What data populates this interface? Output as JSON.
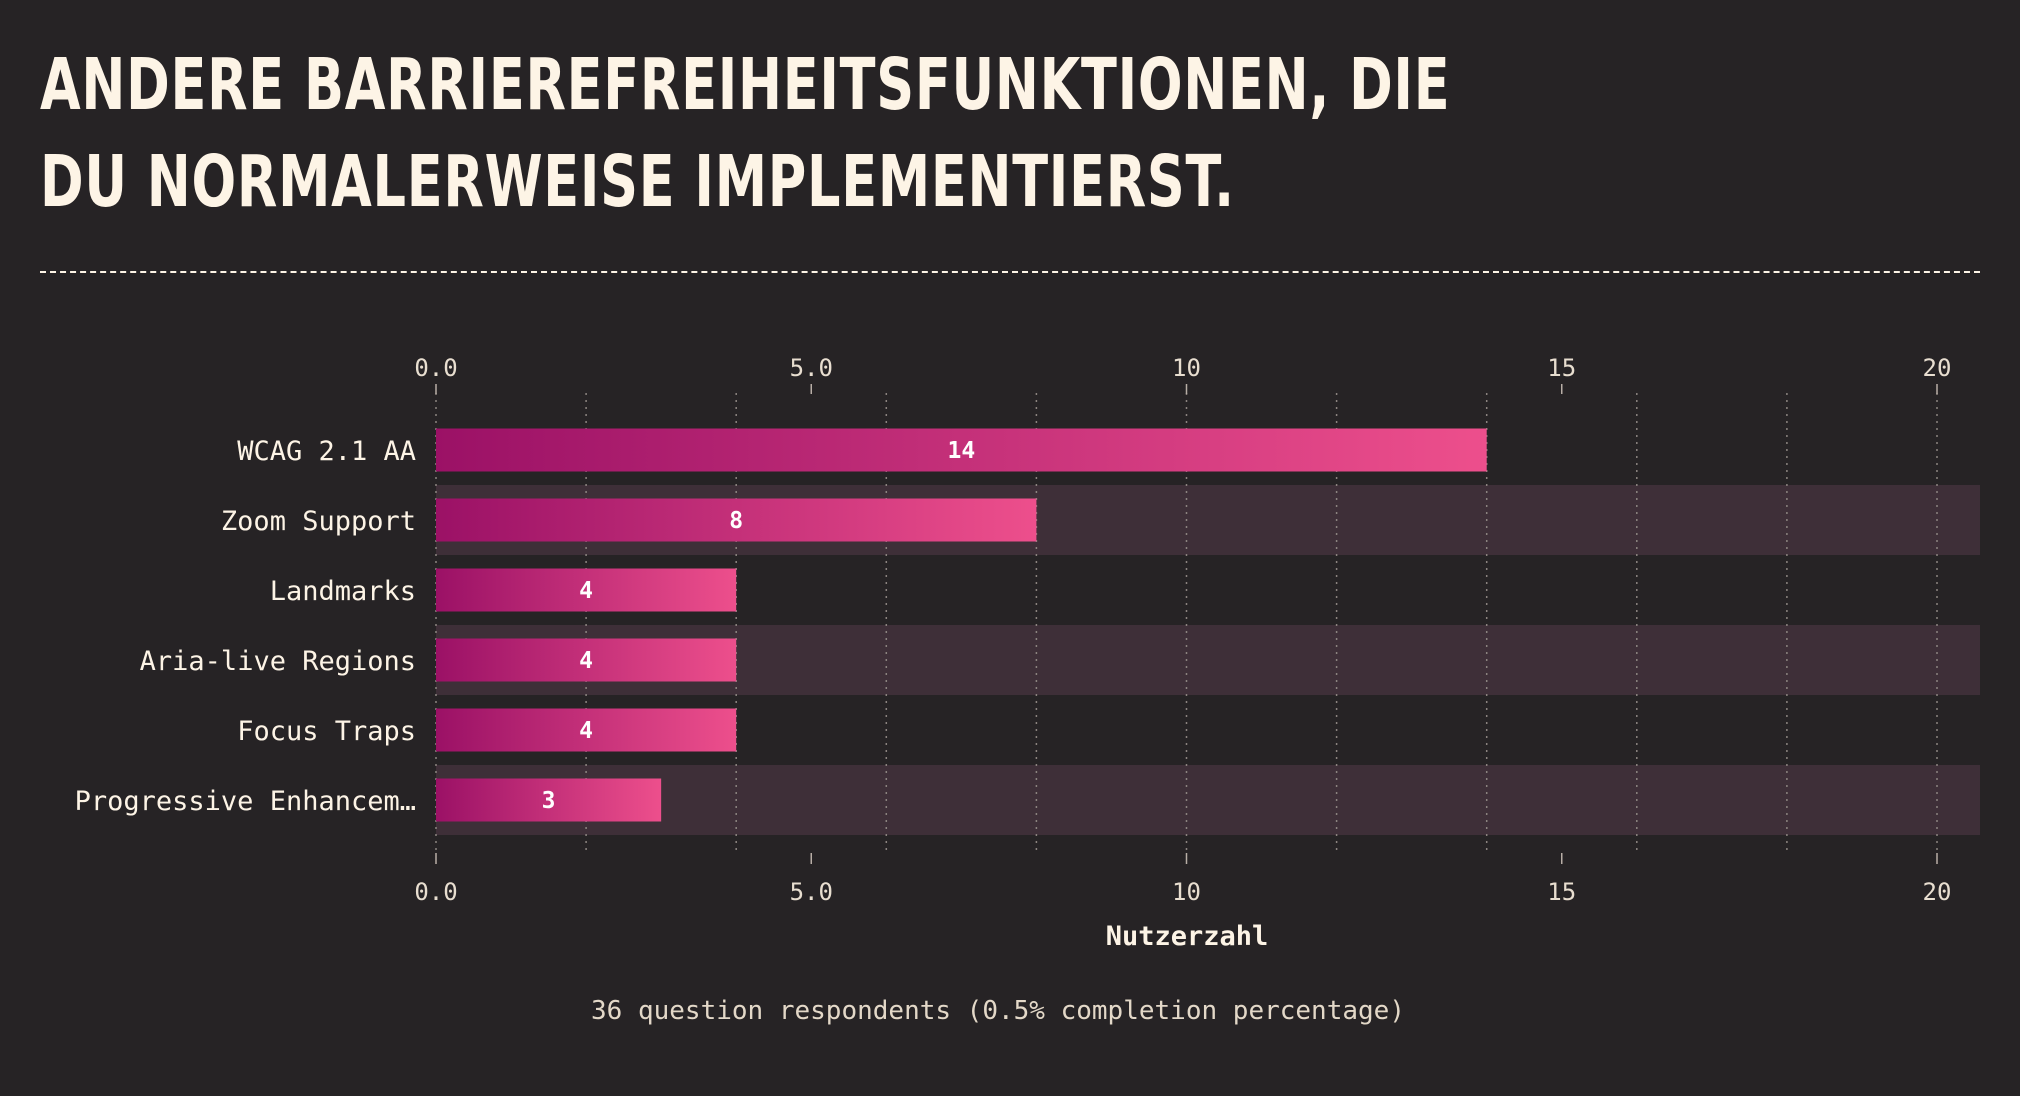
{
  "title": "ANDERE BARRIEREFREIHEITSFUNKTIONEN, DIE DU NORMALERWEISE IMPLEMENTIERST.",
  "footer": "36 question respondents (0.5% completion percentage)",
  "colors": {
    "background": "#262325",
    "text": "#fdf4e6",
    "band": "#3e2f38",
    "bar_start": "#9b1166",
    "bar_end": "#ed4f8c",
    "grid": "#8c8480"
  },
  "chart_data": {
    "type": "bar",
    "orientation": "horizontal",
    "categories": [
      "WCAG 2.1 AA",
      "Zoom Support",
      "Landmarks",
      "Aria-live Regions",
      "Focus Traps",
      "Progressive Enhancem…"
    ],
    "values": [
      14,
      8,
      4,
      4,
      4,
      3
    ],
    "data_labels": [
      "14",
      "8",
      "4",
      "4",
      "4",
      "3"
    ],
    "xlabel": "Nutzerzahl",
    "xlim": [
      0,
      20
    ],
    "xticks": [
      0,
      5,
      10,
      15,
      20
    ],
    "xtick_labels": [
      "0.0",
      "5.0",
      "10",
      "15",
      "20"
    ],
    "minor_grid_step": 2,
    "grid": true,
    "axis_position": "top and bottom",
    "legend": "none"
  }
}
